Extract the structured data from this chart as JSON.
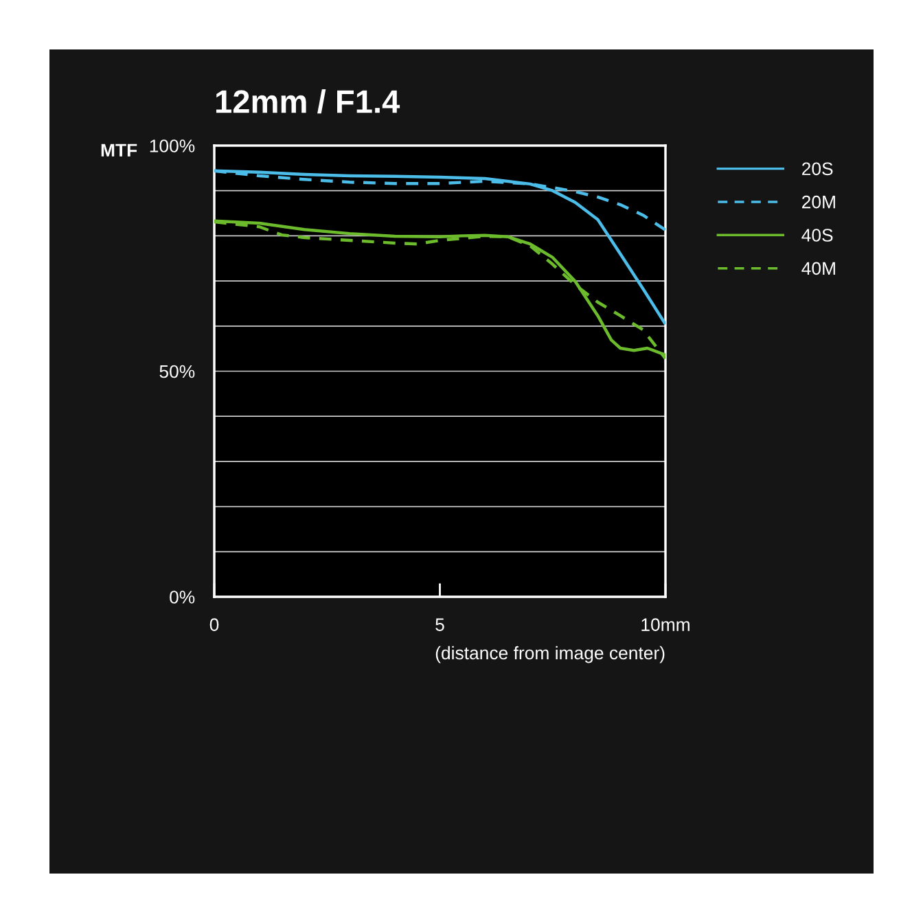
{
  "chart_data": {
    "type": "line",
    "title": "12mm / F1.4",
    "ylabel": "MTF",
    "xlabel": "(distance from image center)",
    "xlim": [
      0,
      10
    ],
    "xticks": [
      0,
      5,
      {
        "value": 10,
        "label": "10mm"
      }
    ],
    "ylim": [
      0,
      100
    ],
    "yticks": [
      {
        "value": 0,
        "label": "0%"
      },
      {
        "value": 10,
        "label": null
      },
      {
        "value": 20,
        "label": null
      },
      {
        "value": 30,
        "label": null
      },
      {
        "value": 40,
        "label": null
      },
      {
        "value": 50,
        "label": "50%"
      },
      {
        "value": 60,
        "label": null
      },
      {
        "value": 70,
        "label": null
      },
      {
        "value": 80,
        "label": null
      },
      {
        "value": 90,
        "label": null
      },
      {
        "value": 100,
        "label": "100%"
      }
    ],
    "grid": "y",
    "legend": "right",
    "marker": "none",
    "series": [
      {
        "name": "20S",
        "color": "#4cbde9",
        "line_style": "solid",
        "x": [
          0,
          1,
          2,
          3,
          4,
          5,
          6,
          7,
          7.5,
          8,
          8.5,
          9,
          9.5,
          10
        ],
        "values": [
          94.4,
          94.1,
          93.6,
          93.3,
          93.2,
          93.0,
          92.7,
          91.5,
          90.0,
          87.4,
          83.6,
          76.0,
          68.3,
          60.4
        ]
      },
      {
        "name": "20M",
        "color": "#4cbde9",
        "line_style": "dashed",
        "x": [
          0,
          1,
          2,
          3,
          4,
          5,
          6,
          7,
          7.5,
          8,
          8.5,
          9,
          9.5,
          10
        ],
        "values": [
          94.4,
          93.3,
          92.5,
          91.9,
          91.6,
          91.6,
          92.1,
          91.5,
          90.7,
          89.8,
          88.6,
          86.9,
          84.6,
          81.3
        ]
      },
      {
        "name": "40S",
        "color": "#6cbb2c",
        "line_style": "solid",
        "x": [
          0,
          1,
          2,
          3,
          4,
          5,
          5.5,
          6,
          6.5,
          7,
          7.5,
          8,
          8.5,
          8.8,
          9,
          9.3,
          9.6,
          10
        ],
        "values": [
          83.3,
          82.8,
          81.4,
          80.5,
          79.9,
          79.8,
          80.0,
          80.1,
          79.8,
          78.2,
          75.2,
          69.9,
          62.3,
          56.9,
          55.1,
          54.6,
          55.1,
          53.6
        ]
      },
      {
        "name": "40M",
        "color": "#6cbb2c",
        "line_style": "dashed",
        "x": [
          0,
          1,
          1.5,
          2,
          3,
          4,
          4.5,
          5,
          6,
          6.5,
          7,
          7.5,
          8,
          8.5,
          9,
          9.5,
          10
        ],
        "values": [
          83.1,
          82.0,
          80.2,
          79.6,
          79.0,
          78.4,
          78.2,
          79.0,
          79.9,
          79.8,
          77.8,
          73.7,
          69.1,
          65.3,
          62.3,
          59.2,
          52.8
        ]
      }
    ]
  }
}
